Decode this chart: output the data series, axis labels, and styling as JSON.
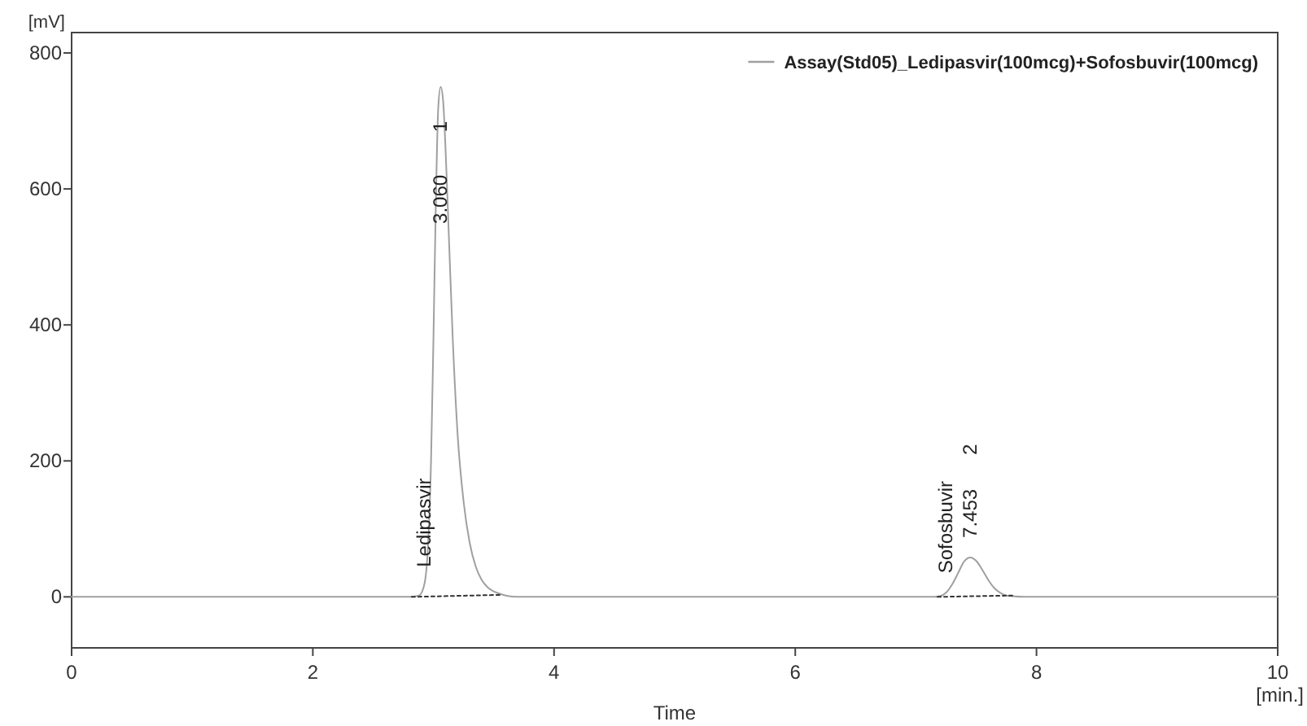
{
  "chart_data": {
    "type": "line",
    "xlabel": "Time",
    "ylabel": "[mV]",
    "xlim": [
      0,
      10
    ],
    "ylim": [
      -75,
      830
    ],
    "xticks": [
      0,
      2,
      4,
      6,
      8,
      10
    ],
    "yticks": [
      0,
      200,
      400,
      600,
      800
    ],
    "grid": false,
    "legend": "top right",
    "marker": "none",
    "series": [
      {
        "name": "Assay(Std05)_Ledipasvir(100mcg)+Sofosbuvir(100mcg)",
        "color": "#a0a0a0",
        "line_style": "solid",
        "x": [
          0,
          2.8,
          2.88,
          2.92,
          2.95,
          2.98,
          3.0,
          3.02,
          3.04,
          3.06,
          3.08,
          3.1,
          3.13,
          3.16,
          3.2,
          3.25,
          3.3,
          3.35,
          3.4,
          3.45,
          3.5,
          3.56,
          3.6,
          3.7,
          7.15,
          7.2,
          7.25,
          7.3,
          7.35,
          7.4,
          7.45,
          7.5,
          7.55,
          7.6,
          7.65,
          7.7,
          7.75,
          7.8,
          7.9,
          10
        ],
        "values": [
          0,
          0,
          2,
          15,
          60,
          200,
          380,
          580,
          720,
          750,
          730,
          660,
          520,
          380,
          240,
          140,
          80,
          45,
          25,
          14,
          8,
          4,
          2,
          0,
          0,
          1,
          6,
          18,
          35,
          52,
          58,
          53,
          40,
          25,
          13,
          6,
          2,
          1,
          0,
          0
        ]
      },
      {
        "color": "#333333",
        "line_style": "dotted",
        "x": [
          2.82,
          3.57
        ],
        "values": [
          0,
          3
        ]
      },
      {
        "color": "#333333",
        "line_style": "dotted",
        "x": [
          7.18,
          7.8
        ],
        "values": [
          0,
          2
        ]
      }
    ],
    "annotations": [
      {
        "text": "Ledipasvir",
        "x": 2.92,
        "y": 15
      },
      {
        "text": "3.060",
        "x": 3.06,
        "y": 520
      },
      {
        "text": "1",
        "x": 3.06,
        "y": 655
      },
      {
        "text": "Sofosbuvir",
        "x": 7.25,
        "y": 6
      },
      {
        "text": "7.453",
        "x": 7.45,
        "y": 58
      },
      "2",
      "[min.]"
    ]
  }
}
